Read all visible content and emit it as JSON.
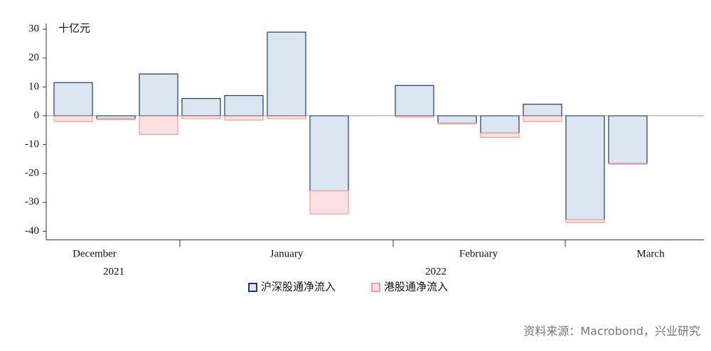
{
  "chart_data": {
    "type": "bar",
    "stacked": true,
    "unit_label": "十亿元",
    "categories": [
      null,
      null,
      null,
      null,
      null,
      null,
      null,
      null,
      null,
      null,
      null,
      null,
      null,
      null
    ],
    "series": [
      {
        "name": "沪深股通净流入",
        "color": "#dce6f2",
        "edge": "#1f3b5c",
        "values": [
          11.5,
          -1,
          14.5,
          6,
          7,
          29,
          -26,
          null,
          10.5,
          -2.5,
          -6,
          4,
          -36,
          -16.5
        ]
      },
      {
        "name": "港股通净流入",
        "color": "#fde0e0",
        "edge": "#e8a0a0",
        "values": [
          -2,
          -0.3,
          -6.5,
          -1,
          -1.5,
          -1,
          -8,
          null,
          -0.5,
          -0.3,
          -1.5,
          -2,
          -1,
          -0.3
        ]
      }
    ],
    "ylim": [
      -43,
      32
    ],
    "yticks": [
      -40,
      -30,
      -20,
      -10,
      0,
      10,
      20,
      30
    ],
    "x_group_labels": [
      "December",
      "January",
      "February",
      "March"
    ],
    "x_year_labels": [
      "2021",
      "2022"
    ],
    "source": "资料来源：Macrobond，兴业研究"
  }
}
